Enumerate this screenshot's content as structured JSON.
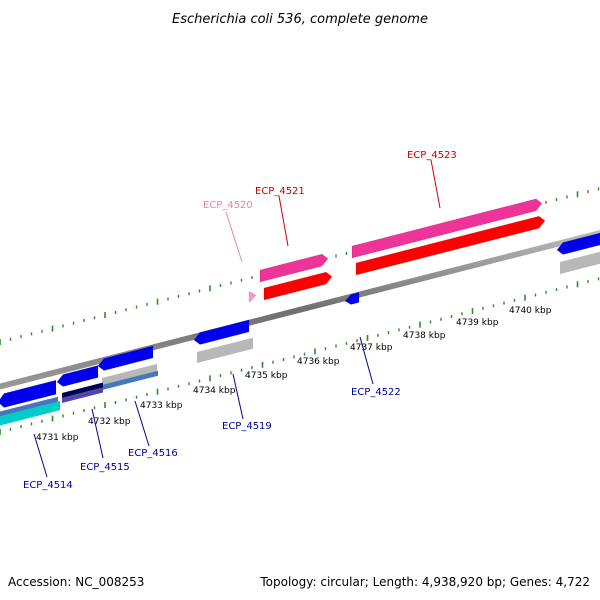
{
  "title": "Escherichia coli 536, complete genome",
  "footer": {
    "accession": "Accession: NC_008253",
    "summary": "Topology: circular; Length: 4,938,920 bp; Genes: 4,722"
  },
  "ruler_labels": [
    "4731 kbp",
    "4732 kbp",
    "4733 kbp",
    "4734 kbp",
    "4735 kbp",
    "4736 kbp",
    "4737 kbp",
    "4738 kbp",
    "4739 kbp",
    "4740 kbp"
  ],
  "gene_labels": [
    "ECP_4514",
    "ECP_4515",
    "ECP_4516",
    "ECP_4519",
    "ECP_4520",
    "ECP_4521",
    "ECP_4522",
    "ECP_4523"
  ],
  "colors": {
    "backbone": "#7f7f7f",
    "tick": "#2e8b2e",
    "forward_strong": "#ff0000",
    "forward_pink": "#ee3399",
    "forward_light": "#f49ac8",
    "reverse_blue": "#0000ee",
    "reverse_cyan": "#00cccc",
    "reverse_steel": "#4477bb",
    "reverse_navy": "#000055",
    "gray_feature": "#b8b8b8",
    "label_blue": "#000099",
    "label_red": "#cc0000",
    "label_pink": "#f080b0"
  }
}
